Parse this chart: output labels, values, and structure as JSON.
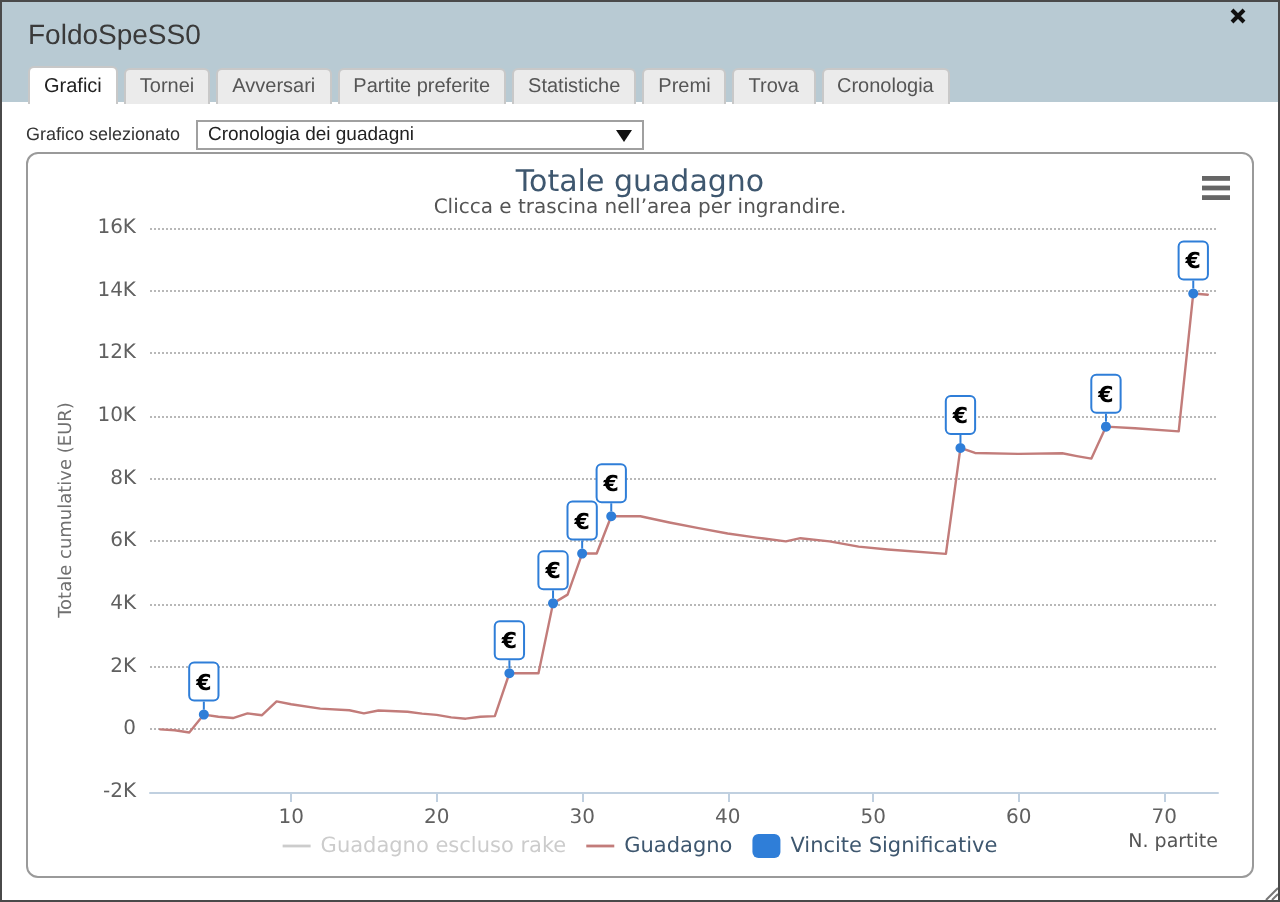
{
  "chart_data": {
    "type": "line",
    "title": "Totale guadagno",
    "subtitle": "Clicca e trascina nell’area per ingrandire.",
    "xlabel": "N. partite",
    "ylabel": "Totale cumulative (EUR)",
    "annotations": [
      "FoldoSpeSS0",
      "Grafici",
      "Tornei",
      "Avversari",
      "Partite preferite",
      "Statistiche",
      "Premi",
      "Trova",
      "Cronologia",
      "Grafico selezionato",
      "Cronologia dei guadagni"
    ],
    "xlim": [
      0.3,
      73.7
    ],
    "xticks": [
      10,
      20,
      30,
      40,
      50,
      60,
      70
    ],
    "ylim": [
      -2000,
      16000
    ],
    "yticks": [
      {
        "value": -2000,
        "label": "-2K"
      },
      0,
      {
        "value": 2000,
        "label": "2K"
      },
      {
        "value": 4000,
        "label": "4K"
      },
      {
        "value": 6000,
        "label": "6K"
      },
      {
        "value": 8000,
        "label": "8K"
      },
      {
        "value": 10000,
        "label": "10K"
      },
      {
        "value": 12000,
        "label": "12K"
      },
      {
        "value": 14000,
        "label": "14K"
      },
      {
        "value": 16000,
        "label": "16K"
      }
    ],
    "grid": "y",
    "legend": "bottom",
    "marker": "none",
    "series": [
      {
        "name": "Guadagno escluso rake",
        "color": "#cccccc"
      },
      {
        "name": "Guadagno",
        "color": "#c27c7a",
        "x": [
          1,
          2,
          3,
          4,
          5,
          6,
          7,
          8,
          9,
          10,
          12,
          14,
          15,
          16,
          18,
          19,
          20,
          21,
          22,
          23,
          24,
          25,
          27,
          28,
          29,
          30,
          31,
          32,
          34,
          36,
          38,
          40,
          42,
          44,
          45,
          47,
          49,
          51,
          55,
          56,
          57,
          60,
          63,
          64,
          65,
          66,
          68,
          71,
          72,
          73
        ],
        "values": [
          0,
          -30,
          -100,
          470,
          400,
          360,
          510,
          450,
          890,
          800,
          660,
          610,
          510,
          600,
          560,
          500,
          460,
          380,
          340,
          400,
          420,
          1790,
          1790,
          4020,
          4300,
          5610,
          5610,
          6800,
          6800,
          6600,
          6420,
          6250,
          6120,
          6000,
          6100,
          6000,
          5830,
          5740,
          5600,
          8980,
          8820,
          8790,
          8810,
          8720,
          8640,
          9660,
          9610,
          9510,
          13910,
          13870
        ]
      },
      {
        "name": "Vincite Significative",
        "type": "scatter",
        "marker": "circle",
        "color": "#2f7ed8",
        "x": [
          4,
          25,
          28,
          30,
          32,
          56,
          66,
          72
        ],
        "values": [
          470,
          1790,
          4020,
          5610,
          6800,
          8980,
          9660,
          13910
        ],
        "value_labels": [
          "€",
          "€",
          "€",
          "€",
          "€",
          "€",
          "€",
          "€"
        ]
      }
    ]
  }
}
